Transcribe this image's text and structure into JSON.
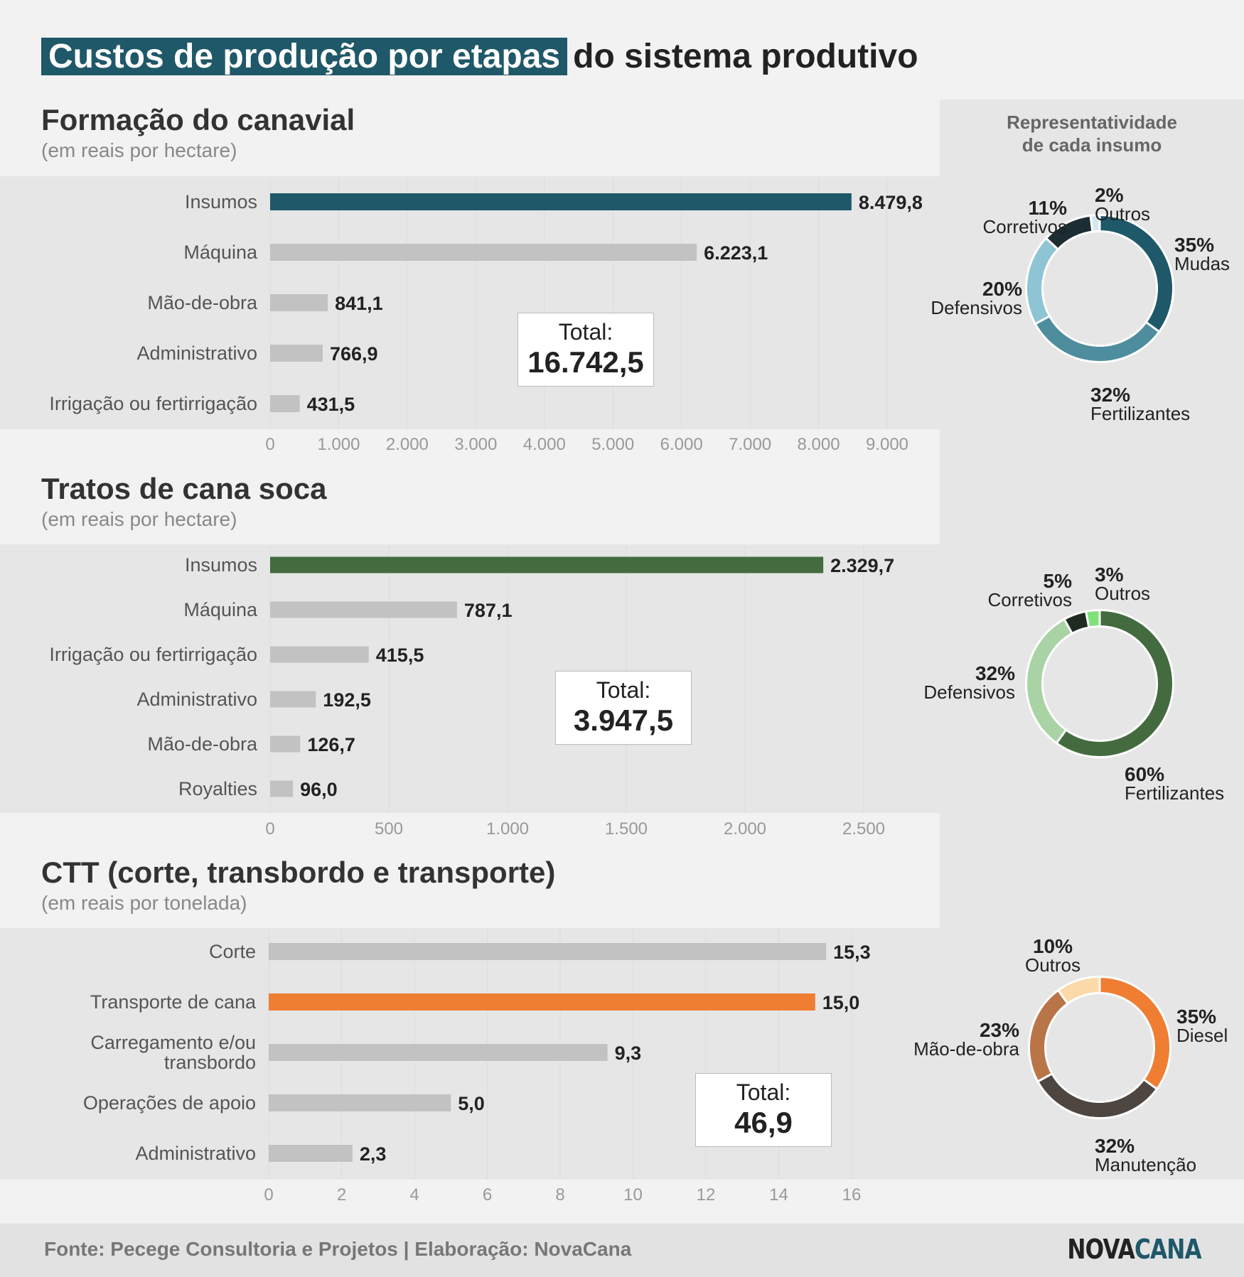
{
  "title": {
    "highlight": "Custos de produção por etapas",
    "rest": "do sistema produtivo"
  },
  "sidebar_title": {
    "line1": "Representatividade",
    "line2": "de cada insumo"
  },
  "sections": [
    {
      "title": "Formação do canavial",
      "subtitle": "(em reais por hectare)",
      "total_label": "Total:",
      "total_value": "16.742,5"
    },
    {
      "title": "Tratos de cana soca",
      "subtitle": "(em reais por hectare)",
      "total_label": "Total:",
      "total_value": "3.947,5"
    },
    {
      "title": "CTT (corte, transbordo  e transporte)",
      "subtitle": "(em reais por tonelada)",
      "total_label": "Total:",
      "total_value": "46,9"
    }
  ],
  "chart_data": [
    {
      "type": "bar",
      "orientation": "horizontal",
      "title": "Formação do canavial",
      "subtitle": "(em reais por hectare)",
      "categories": [
        "Insumos",
        "Máquina",
        "Mão-de-obra",
        "Administrativo",
        "Irrigação ou fertirrigação"
      ],
      "values": [
        8479.8,
        6223.1,
        841.1,
        766.9,
        431.5
      ],
      "value_labels": [
        "8.479,8",
        "6.223,1",
        "841,1",
        "766,9",
        "431,5"
      ],
      "highlight_index": 0,
      "highlight_color": "#1f5869",
      "xlim": [
        0,
        9000
      ],
      "ticks": [
        0,
        1000,
        2000,
        3000,
        4000,
        5000,
        6000,
        7000,
        8000,
        9000
      ],
      "tick_labels": [
        "0",
        "1.000",
        "2.000",
        "3.000",
        "4.000",
        "5.000",
        "6.000",
        "7.000",
        "8.000",
        "9.000"
      ]
    },
    {
      "type": "pie",
      "style": "donut",
      "title": "Representatividade de cada insumo",
      "slices": [
        {
          "name": "Mudas",
          "pct_label": "35%",
          "value": 35,
          "color": "#1f5869"
        },
        {
          "name": "Fertilizantes",
          "pct_label": "32%",
          "value": 32,
          "color": "#4d8d9e"
        },
        {
          "name": "Defensivos",
          "pct_label": "20%",
          "value": 20,
          "color": "#8ec4d4"
        },
        {
          "name": "Corretivos",
          "pct_label": "11%",
          "value": 11,
          "color": "#1c2d33"
        },
        {
          "name": "Outros",
          "pct_label": "2%",
          "value": 2,
          "color": "#d6e8ef"
        }
      ]
    },
    {
      "type": "bar",
      "orientation": "horizontal",
      "title": "Tratos de cana soca",
      "subtitle": "(em reais por hectare)",
      "categories": [
        "Insumos",
        "Máquina",
        "Irrigação ou fertirrigação",
        "Administrativo",
        "Mão-de-obra",
        "Royalties"
      ],
      "values": [
        2329.7,
        787.1,
        415.5,
        192.5,
        126.7,
        96.0
      ],
      "value_labels": [
        "2.329,7",
        "787,1",
        "415,5",
        "192,5",
        "126,7",
        "96,0"
      ],
      "highlight_index": 0,
      "highlight_color": "#436b3f",
      "xlim": [
        0,
        2500
      ],
      "ticks": [
        0,
        500,
        1000,
        1500,
        2000,
        2500
      ],
      "tick_labels": [
        "0",
        "500",
        "1.000",
        "1.500",
        "2.000",
        "2.500"
      ]
    },
    {
      "type": "pie",
      "style": "donut",
      "title": "Representatividade de cada insumo",
      "slices": [
        {
          "name": "Fertilizantes",
          "pct_label": "60%",
          "value": 60,
          "color": "#436b3f"
        },
        {
          "name": "Defensivos",
          "pct_label": "32%",
          "value": 32,
          "color": "#a9d3a4"
        },
        {
          "name": "Corretivos",
          "pct_label": "5%",
          "value": 5,
          "color": "#1f2b20"
        },
        {
          "name": "Outros",
          "pct_label": "3%",
          "value": 3,
          "color": "#82e07b"
        }
      ]
    },
    {
      "type": "bar",
      "orientation": "horizontal",
      "title": "CTT (corte, transbordo  e transporte)",
      "subtitle": "(em reais por tonelada)",
      "categories": [
        "Corte",
        "Transporte de cana",
        "Carregamento e/ou transbordo",
        "Operações de apoio",
        "Administrativo"
      ],
      "category_lines": [
        [
          "Corte"
        ],
        [
          "Transporte de cana"
        ],
        [
          "Carregamento e/ou",
          "transbordo"
        ],
        [
          "Operações de apoio"
        ],
        [
          "Administrativo"
        ]
      ],
      "values": [
        15.3,
        15.0,
        9.3,
        5.0,
        2.3
      ],
      "value_labels": [
        "15,3",
        "15,0",
        "9,3",
        "5,0",
        "2,3"
      ],
      "highlight_index": 1,
      "highlight_color": "#ef7d32",
      "xlim": [
        0,
        16
      ],
      "ticks": [
        0,
        2,
        4,
        6,
        8,
        10,
        12,
        14,
        16
      ],
      "tick_labels": [
        "0",
        "2",
        "4",
        "6",
        "8",
        "10",
        "12",
        "14",
        "16"
      ]
    },
    {
      "type": "pie",
      "style": "donut",
      "title": "Representatividade de cada insumo",
      "slices": [
        {
          "name": "Diesel",
          "pct_label": "35%",
          "value": 35,
          "color": "#ef7d32"
        },
        {
          "name": "Manutenção",
          "pct_label": "32%",
          "value": 32,
          "color": "#4e4641"
        },
        {
          "name": "Mão-de-obra",
          "pct_label": "23%",
          "value": 23,
          "color": "#b97447"
        },
        {
          "name": "Outros",
          "pct_label": "10%",
          "value": 10,
          "color": "#fcd9a9"
        }
      ]
    }
  ],
  "footer": {
    "source": "Fonte: Pecege Consultoria e Projetos | Elaboração: NovaCana",
    "logo_part1": "NOVA",
    "logo_part2": "CANA"
  }
}
